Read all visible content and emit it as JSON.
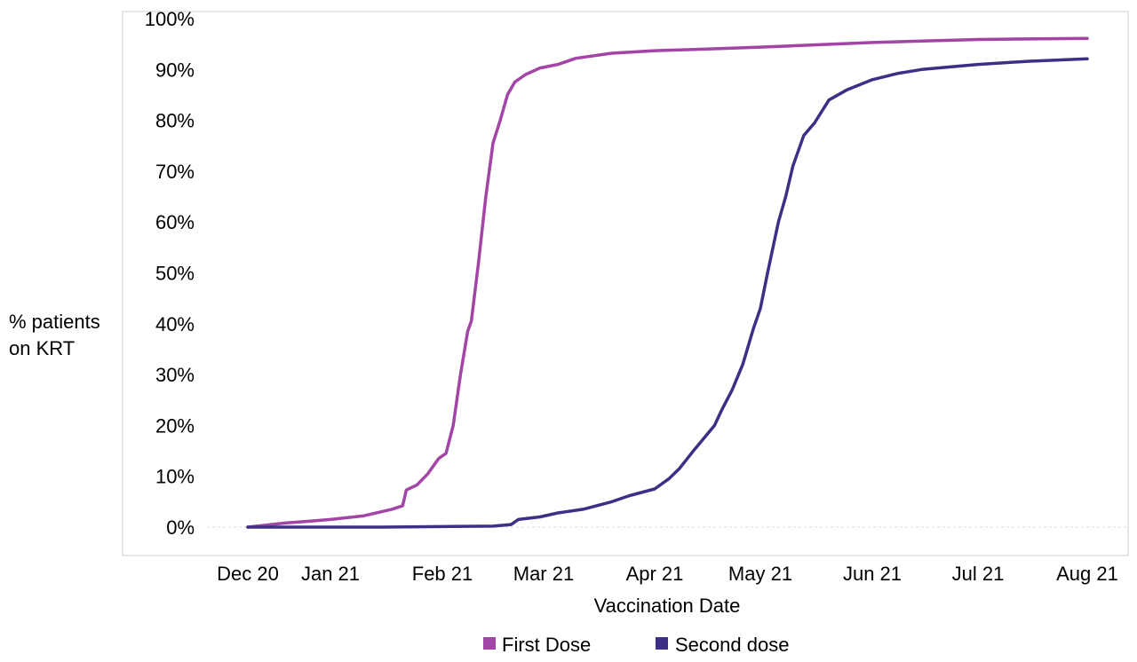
{
  "chart_data": {
    "type": "line",
    "title": "",
    "xlabel": "Vaccination Date",
    "ylabel_lines": [
      "% patients",
      "on KRT"
    ],
    "x_ticks": [
      "Dec 20",
      "Jan 21",
      "Feb 21",
      "Mar 21",
      "Apr 21",
      "May 21",
      "Jun 21",
      "Jul 21",
      "Aug 21"
    ],
    "y_ticks": [
      "0%",
      "10%",
      "20%",
      "30%",
      "40%",
      "50%",
      "60%",
      "70%",
      "80%",
      "90%",
      "100%"
    ],
    "ylim": [
      0,
      100
    ],
    "grid": "y=0 dotted baseline only",
    "legend_position": "bottom",
    "series": [
      {
        "name": "First Dose",
        "color": "#a245a6",
        "points": [
          [
            "2020-12-01",
            0
          ],
          [
            "2020-12-15",
            0.8
          ],
          [
            "2020-12-25",
            1.2
          ],
          [
            "2021-01-01",
            1.5
          ],
          [
            "2021-01-10",
            2.2
          ],
          [
            "2021-01-18",
            3.5
          ],
          [
            "2021-01-21",
            4.2
          ],
          [
            "2021-01-22",
            7.3
          ],
          [
            "2021-01-25",
            8.3
          ],
          [
            "2021-01-28",
            10.5
          ],
          [
            "2021-01-31",
            13.5
          ],
          [
            "2021-02-02",
            14.5
          ],
          [
            "2021-02-04",
            20
          ],
          [
            "2021-02-06",
            30
          ],
          [
            "2021-02-08",
            38.5
          ],
          [
            "2021-02-09",
            40.5
          ],
          [
            "2021-02-11",
            52
          ],
          [
            "2021-02-13",
            65
          ],
          [
            "2021-02-15",
            75.5
          ],
          [
            "2021-02-17",
            80
          ],
          [
            "2021-02-19",
            85
          ],
          [
            "2021-02-21",
            87.5
          ],
          [
            "2021-02-24",
            89
          ],
          [
            "2021-02-28",
            90.3
          ],
          [
            "2021-03-05",
            91
          ],
          [
            "2021-03-10",
            92.2
          ],
          [
            "2021-03-20",
            93.2
          ],
          [
            "2021-04-01",
            93.7
          ],
          [
            "2021-04-15",
            94
          ],
          [
            "2021-05-01",
            94.4
          ],
          [
            "2021-05-15",
            94.8
          ],
          [
            "2021-06-01",
            95.3
          ],
          [
            "2021-06-15",
            95.6
          ],
          [
            "2021-07-01",
            95.9
          ],
          [
            "2021-07-15",
            96
          ],
          [
            "2021-08-01",
            96.1
          ]
        ]
      },
      {
        "name": "Second dose",
        "color": "#3c2f85",
        "points": [
          [
            "2020-12-01",
            0
          ],
          [
            "2021-01-15",
            0
          ],
          [
            "2021-02-01",
            0.1
          ],
          [
            "2021-02-15",
            0.2
          ],
          [
            "2021-02-20",
            0.5
          ],
          [
            "2021-02-22",
            1.5
          ],
          [
            "2021-02-28",
            2
          ],
          [
            "2021-03-05",
            2.8
          ],
          [
            "2021-03-12",
            3.5
          ],
          [
            "2021-03-20",
            5
          ],
          [
            "2021-03-25",
            6.2
          ],
          [
            "2021-04-01",
            7.5
          ],
          [
            "2021-04-05",
            9.5
          ],
          [
            "2021-04-08",
            11.5
          ],
          [
            "2021-04-12",
            15
          ],
          [
            "2021-04-15",
            17.5
          ],
          [
            "2021-04-18",
            20
          ],
          [
            "2021-04-20",
            23
          ],
          [
            "2021-04-23",
            27
          ],
          [
            "2021-04-26",
            32
          ],
          [
            "2021-04-29",
            39
          ],
          [
            "2021-05-01",
            43
          ],
          [
            "2021-05-03",
            50
          ],
          [
            "2021-05-06",
            60
          ],
          [
            "2021-05-08",
            65
          ],
          [
            "2021-05-10",
            71
          ],
          [
            "2021-05-13",
            77
          ],
          [
            "2021-05-16",
            79.5
          ],
          [
            "2021-05-20",
            84
          ],
          [
            "2021-05-25",
            86
          ],
          [
            "2021-06-01",
            88
          ],
          [
            "2021-06-08",
            89.2
          ],
          [
            "2021-06-15",
            90
          ],
          [
            "2021-07-01",
            91
          ],
          [
            "2021-07-15",
            91.6
          ],
          [
            "2021-08-01",
            92.1
          ]
        ]
      }
    ]
  }
}
